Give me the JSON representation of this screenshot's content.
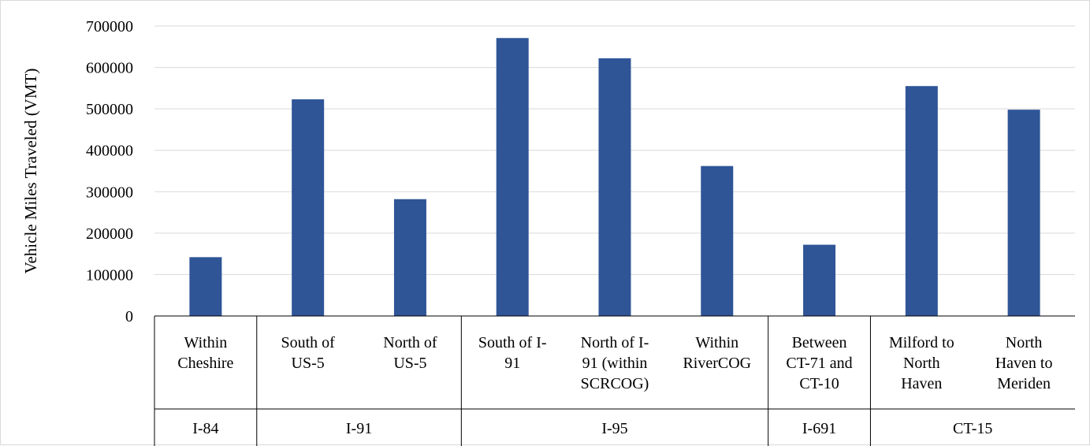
{
  "chart_data": {
    "type": "bar",
    "title": "",
    "xlabel": "",
    "ylabel": "Vehicle Miles Traveled (VMT)",
    "ylim": [
      0,
      700000
    ],
    "y_ticks": [
      "0",
      "100000",
      "200000",
      "300000",
      "400000",
      "500000",
      "600000",
      "700000"
    ],
    "grid": true,
    "legend": "none",
    "bar_color": "#2F5597",
    "categories": [
      {
        "lines": [
          "Within",
          "Cheshire"
        ],
        "group": "I-84"
      },
      {
        "lines": [
          "South of",
          "US-5"
        ],
        "group": "I-91"
      },
      {
        "lines": [
          "North of",
          "US-5"
        ],
        "group": "I-91"
      },
      {
        "lines": [
          "South of I-",
          "91"
        ],
        "group": "I-95"
      },
      {
        "lines": [
          "North of I-",
          "91 (within",
          "SCRCOG)"
        ],
        "group": "I-95"
      },
      {
        "lines": [
          "Within",
          "RiverCOG"
        ],
        "group": "I-95"
      },
      {
        "lines": [
          "Between",
          "CT-71 and",
          "CT-10"
        ],
        "group": "I-691"
      },
      {
        "lines": [
          "Milford to",
          "North",
          "Haven"
        ],
        "group": "CT-15"
      },
      {
        "lines": [
          "North",
          "Haven to",
          "Meriden"
        ],
        "group": "CT-15"
      }
    ],
    "groups": [
      "I-84",
      "I-91",
      "I-95",
      "I-691",
      "CT-15"
    ],
    "values": [
      142000,
      523000,
      282000,
      671000,
      622000,
      362000,
      172000,
      555000,
      498000
    ]
  }
}
